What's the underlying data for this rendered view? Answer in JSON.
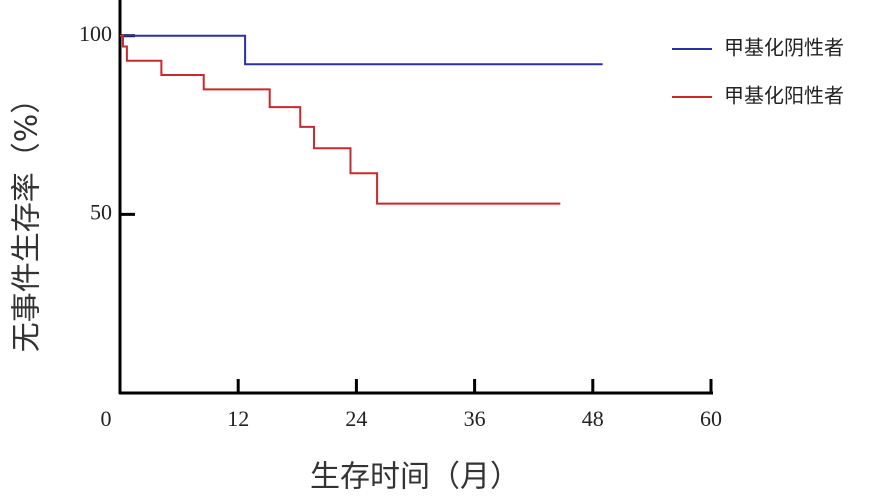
{
  "chart_data": {
    "type": "line",
    "step": "post",
    "x_label": "生存时间（月）",
    "y_label": "无事件生存率（%）",
    "xlim": [
      0,
      60
    ],
    "xticks": [
      0,
      12,
      24,
      36,
      48,
      60
    ],
    "ylim": [
      0,
      110
    ],
    "yticks": [
      50,
      100
    ],
    "legend": "top-right",
    "series": [
      {
        "name": "甲基化阴性者",
        "color": "#2b2fa8",
        "x": [
          0,
          12.7,
          49
        ],
        "values": [
          100,
          92,
          92
        ]
      },
      {
        "name": "甲基化阳性者",
        "color": "#c8282e",
        "x": [
          0,
          0.3,
          0.7,
          4.2,
          8.5,
          15.2,
          18.3,
          19.7,
          23.4,
          26.1,
          44.7
        ],
        "values": [
          100,
          97,
          93,
          89,
          85,
          80,
          74.5,
          68.5,
          61.5,
          53,
          53
        ]
      }
    ]
  }
}
